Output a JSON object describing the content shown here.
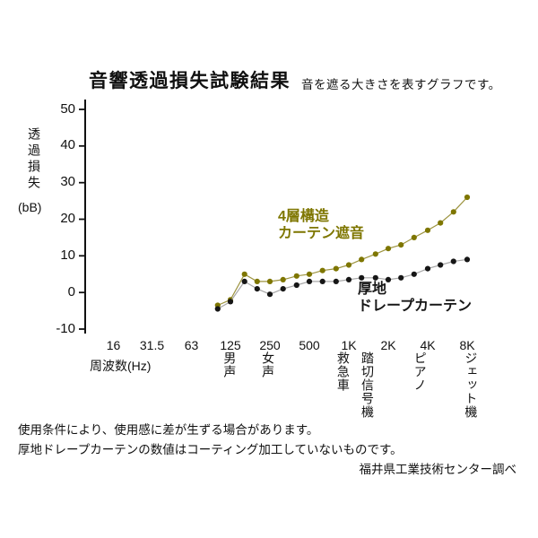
{
  "page": {
    "footnotes": [
      "使用条件により、使用感に差が生ずる場合があります。",
      "厚地ドレープカーテンの数値はコーティング加工していないものです。"
    ],
    "source": "福井県工業技術センター調べ"
  },
  "chart_data": {
    "type": "line",
    "title": "音響透過損失試験結果",
    "subtitle": "音を遮る大きさを表すグラフです。",
    "xlabel": "周波数(Hz)",
    "ylabel": "透過損失",
    "ylabel_unit": "(bB)",
    "x_scale": "log",
    "grid": false,
    "ylim": [
      -10,
      50
    ],
    "y_ticks": [
      50,
      40,
      30,
      20,
      10,
      0,
      -10
    ],
    "x_ticks": [
      "16",
      "31.5",
      "63",
      "125",
      "250",
      "500",
      "1K",
      "2K",
      "4K",
      "8K"
    ],
    "x_tick_values": [
      16,
      31.5,
      63,
      125,
      250,
      500,
      1000,
      2000,
      4000,
      8000
    ],
    "series": [
      {
        "name": "4層構造カーテン遮音",
        "label_lines": [
          "4層構造",
          "カーテン遮音"
        ],
        "color": "#7e7600",
        "line_color": "#9d9440",
        "x": [
          100,
          125,
          160,
          200,
          250,
          315,
          400,
          500,
          630,
          800,
          1000,
          1250,
          1600,
          2000,
          2500,
          3150,
          4000,
          5000,
          6300,
          8000
        ],
        "values": [
          -3.5,
          -2,
          5,
          3,
          3,
          3.5,
          4.5,
          5,
          6,
          6.5,
          7.5,
          9,
          10.5,
          12,
          13,
          15,
          17,
          19,
          22,
          26
        ]
      },
      {
        "name": "厚地ドレープカーテン",
        "label_lines": [
          "厚地",
          "ドレープカーテン"
        ],
        "color": "#161616",
        "line_color": "#a8a8a8",
        "x": [
          100,
          125,
          160,
          200,
          250,
          315,
          400,
          500,
          630,
          800,
          1000,
          1250,
          1600,
          2000,
          2500,
          3150,
          4000,
          5000,
          6300,
          8000
        ],
        "values": [
          -4.5,
          -2.5,
          3,
          1,
          -0.5,
          1,
          2,
          3,
          3,
          3,
          3.5,
          4,
          4,
          3.5,
          4,
          5,
          6.5,
          7.5,
          8.5,
          9
        ]
      }
    ],
    "sound_annotations": [
      {
        "label": "男声",
        "freq": 120
      },
      {
        "label": "女声",
        "freq": 235
      },
      {
        "label": "救急車",
        "freq": 880
      },
      {
        "label": "踏切信号機",
        "freq": 1350
      },
      {
        "label": "ピアノ",
        "freq": 3400
      },
      {
        "label": "ジェット機",
        "freq": 8300
      }
    ]
  }
}
